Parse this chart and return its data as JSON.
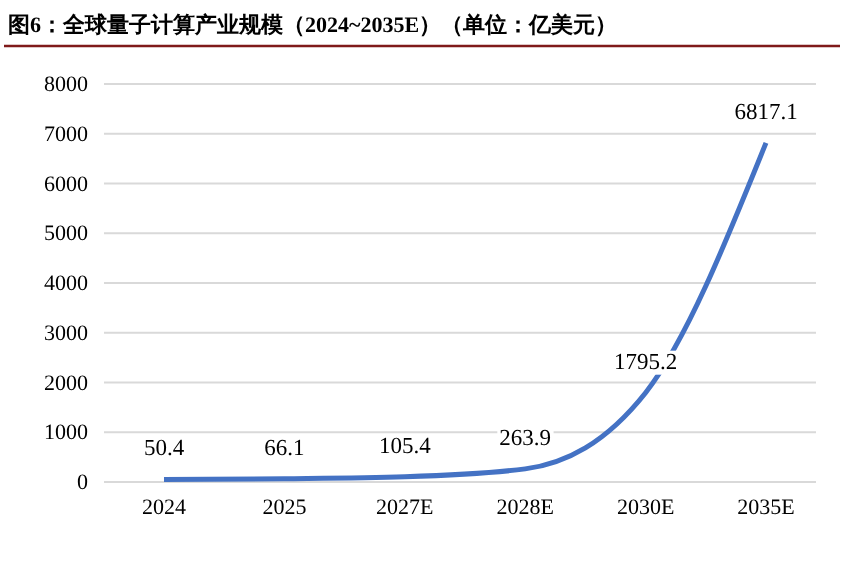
{
  "chart_data": {
    "type": "line",
    "title": "图6：全球量子计算产业规模（2024~2035E）（单位：亿美元）",
    "categories": [
      "2024",
      "2025",
      "2027E",
      "2028E",
      "2030E",
      "2035E"
    ],
    "series": [
      {
        "color": "#4472c4",
        "values": [
          50.4,
          66.1,
          105.4,
          263.9,
          1795.2,
          6817.1
        ]
      }
    ],
    "ylim": [
      0,
      8000
    ],
    "yticks": [
      0,
      1000,
      2000,
      3000,
      4000,
      5000,
      6000,
      7000,
      8000
    ],
    "grid": "y",
    "data_labels": true,
    "marker": "none",
    "line_style": "solid"
  }
}
